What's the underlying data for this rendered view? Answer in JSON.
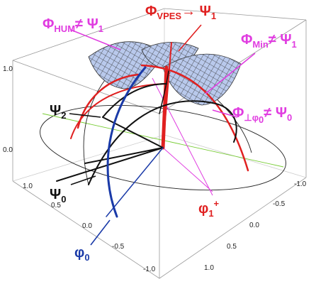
{
  "axis_ticks": {
    "z": [
      "1.0",
      "0.0"
    ],
    "x": [
      "1.0",
      "0.5",
      "0.0",
      "-0.5",
      "-1.0"
    ],
    "y": [
      "-1.0",
      "-0.5",
      "0.0",
      "0.5",
      "1.0"
    ]
  },
  "labels": {
    "vpes": [
      "Φ",
      "VPES",
      "→ Ψ",
      "1"
    ],
    "hum": [
      "Φ",
      "HUM",
      "≠ Ψ",
      "1"
    ],
    "min": [
      "Φ",
      "Min",
      "≠ Ψ",
      "1"
    ],
    "perp": [
      "Φ",
      "⊥φ",
      "0",
      "≠ Ψ",
      "0"
    ],
    "psi2": [
      "Ψ",
      "2"
    ],
    "psi0": [
      "Ψ",
      "0"
    ],
    "phi0": [
      "φ",
      "0"
    ],
    "phi1": [
      "φ",
      "1",
      "+"
    ]
  }
}
